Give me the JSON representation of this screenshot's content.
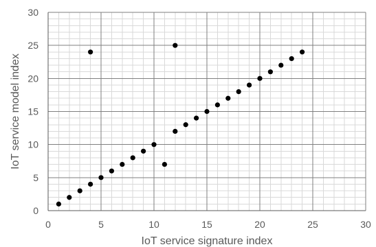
{
  "chart_data": {
    "type": "scatter",
    "title": "",
    "xlabel": "IoT service signature index",
    "ylabel": "IoT service model index",
    "xlim": [
      0,
      30
    ],
    "ylim": [
      0,
      30
    ],
    "x_major_step": 5,
    "y_major_step": 5,
    "x_minor_step": 1,
    "y_minor_step": 1,
    "x_ticks": [
      "0",
      "5",
      "10",
      "15",
      "20",
      "25",
      "30"
    ],
    "y_ticks": [
      "0",
      "5",
      "10",
      "15",
      "20",
      "25",
      "30"
    ],
    "grid": "major and minor",
    "marker_color": "#000000",
    "series": [
      {
        "points": [
          {
            "x": 1,
            "y": 1
          },
          {
            "x": 2,
            "y": 2
          },
          {
            "x": 3,
            "y": 3
          },
          {
            "x": 4,
            "y": 4
          },
          {
            "x": 4,
            "y": 24
          },
          {
            "x": 5,
            "y": 5
          },
          {
            "x": 6,
            "y": 6
          },
          {
            "x": 7,
            "y": 7
          },
          {
            "x": 8,
            "y": 8
          },
          {
            "x": 9,
            "y": 9
          },
          {
            "x": 10,
            "y": 10
          },
          {
            "x": 11,
            "y": 7
          },
          {
            "x": 12,
            "y": 12
          },
          {
            "x": 12,
            "y": 25
          },
          {
            "x": 13,
            "y": 13
          },
          {
            "x": 14,
            "y": 14
          },
          {
            "x": 15,
            "y": 15
          },
          {
            "x": 16,
            "y": 16
          },
          {
            "x": 17,
            "y": 17
          },
          {
            "x": 18,
            "y": 18
          },
          {
            "x": 19,
            "y": 19
          },
          {
            "x": 20,
            "y": 20
          },
          {
            "x": 21,
            "y": 21
          },
          {
            "x": 22,
            "y": 22
          },
          {
            "x": 23,
            "y": 23
          },
          {
            "x": 24,
            "y": 24
          }
        ]
      }
    ]
  }
}
